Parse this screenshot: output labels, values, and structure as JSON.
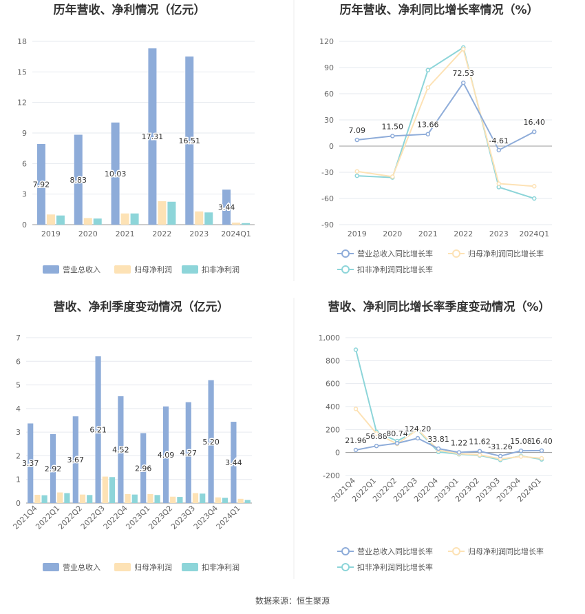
{
  "source": "数据来源：恒生聚源",
  "colors": {
    "revenue": "#8eacd9",
    "net_profit": "#fde2b5",
    "deducted_profit": "#8dd5d9",
    "revenue_line": "#8eacd9",
    "net_line": "#fde2b5",
    "deducted_line": "#8dd5d9",
    "grid": "#e6e9ef",
    "axis": "#666666"
  },
  "chart_data": [
    {
      "type": "bar",
      "title": "历年营收、净利情况（亿元）",
      "categories": [
        "2019",
        "2020",
        "2021",
        "2022",
        "2023",
        "2024Q1"
      ],
      "ylim": [
        0,
        18
      ],
      "yticks": [
        0,
        3,
        6,
        9,
        12,
        15,
        18
      ],
      "series": [
        {
          "name": "营业总收入",
          "values": [
            7.92,
            8.83,
            10.03,
            17.31,
            16.51,
            3.44
          ],
          "labels": [
            "7.92",
            "8.83",
            "10.03",
            "17.31",
            "16.51",
            "3.44"
          ]
        },
        {
          "name": "归母净利润",
          "values": [
            1.0,
            0.65,
            1.1,
            2.3,
            1.3,
            0.2
          ]
        },
        {
          "name": "扣非净利润",
          "values": [
            0.9,
            0.6,
            1.1,
            2.25,
            1.2,
            0.15
          ]
        }
      ],
      "grid": true,
      "legend": "bottom"
    },
    {
      "type": "line",
      "title": "历年营收、净利同比增长率情况（%）",
      "categories": [
        "2019",
        "2020",
        "2021",
        "2022",
        "2023",
        "2024Q1"
      ],
      "ylim": [
        -90,
        120
      ],
      "yticks": [
        -90,
        -60,
        -30,
        0,
        30,
        60,
        90,
        120
      ],
      "series": [
        {
          "name": "营业总收入同比增长率",
          "values": [
            7.09,
            11.5,
            13.66,
            72.53,
            -4.61,
            16.4
          ],
          "labels": [
            "7.09",
            "11.50",
            "13.66",
            "72.53",
            "-4.61",
            "16.40"
          ]
        },
        {
          "name": "归母净利润同比增长率",
          "values": [
            -29,
            -35,
            67,
            111,
            -43,
            -46
          ]
        },
        {
          "name": "扣非净利润同比增长率",
          "values": [
            -34,
            -36,
            87,
            113,
            -47,
            -60
          ]
        }
      ],
      "grid": true,
      "legend": "bottom"
    },
    {
      "type": "bar",
      "title": "营收、净利季度变动情况（亿元）",
      "categories": [
        "2021Q4",
        "2022Q1",
        "2022Q2",
        "2022Q3",
        "2022Q4",
        "2023Q1",
        "2023Q2",
        "2023Q3",
        "2023Q4",
        "2024Q1"
      ],
      "ylim": [
        0,
        7
      ],
      "yticks": [
        0,
        1,
        2,
        3,
        4,
        5,
        6,
        7
      ],
      "series": [
        {
          "name": "营业总收入",
          "values": [
            3.37,
            2.92,
            3.67,
            6.21,
            4.52,
            2.96,
            4.09,
            4.27,
            5.2,
            3.44
          ],
          "labels": [
            "3.37",
            "2.92",
            "3.67",
            "6.21",
            "4.52",
            "2.96",
            "4.09",
            "4.27",
            "5.20",
            "3.44"
          ]
        },
        {
          "name": "归母净利润",
          "values": [
            0.35,
            0.45,
            0.36,
            1.12,
            0.38,
            0.38,
            0.27,
            0.42,
            0.24,
            0.18
          ]
        },
        {
          "name": "扣非净利润",
          "values": [
            0.33,
            0.42,
            0.34,
            1.1,
            0.36,
            0.34,
            0.26,
            0.4,
            0.22,
            0.13
          ]
        }
      ],
      "grid": true,
      "legend": "bottom"
    },
    {
      "type": "line",
      "title": "营收、净利同比增长率季度变动情况（%）",
      "categories": [
        "2021Q4",
        "2022Q1",
        "2022Q2",
        "2022Q3",
        "2022Q4",
        "2023Q1",
        "2023Q2",
        "2023Q3",
        "2023Q4",
        "2024Q1"
      ],
      "ylim": [
        -200,
        1000
      ],
      "yticks": [
        -200,
        0,
        200,
        400,
        600,
        800,
        1000
      ],
      "ytick_labels": [
        "-200",
        "0",
        "200",
        "400",
        "600",
        "800",
        "1,000"
      ],
      "series": [
        {
          "name": "营业总收入同比增长率",
          "values": [
            21.96,
            56.88,
            80.74,
            124.2,
            33.81,
            1.22,
            11.62,
            -31.26,
            15.08,
            16.4
          ],
          "labels": [
            "21.96",
            "56.88",
            "80.74",
            "124.20",
            "33.81",
            "1.22",
            "11.62",
            "-31.26",
            "15.08",
            "16.40"
          ]
        },
        {
          "name": "归母净利润同比增长率",
          "values": [
            380,
            165,
            75,
            200,
            20,
            -10,
            -20,
            -55,
            -35,
            -50
          ]
        },
        {
          "name": "扣非净利润同比增长率",
          "values": [
            895,
            180,
            100,
            195,
            5,
            -15,
            -25,
            -65,
            -30,
            -60
          ]
        }
      ],
      "grid": true,
      "legend": "bottom"
    }
  ]
}
